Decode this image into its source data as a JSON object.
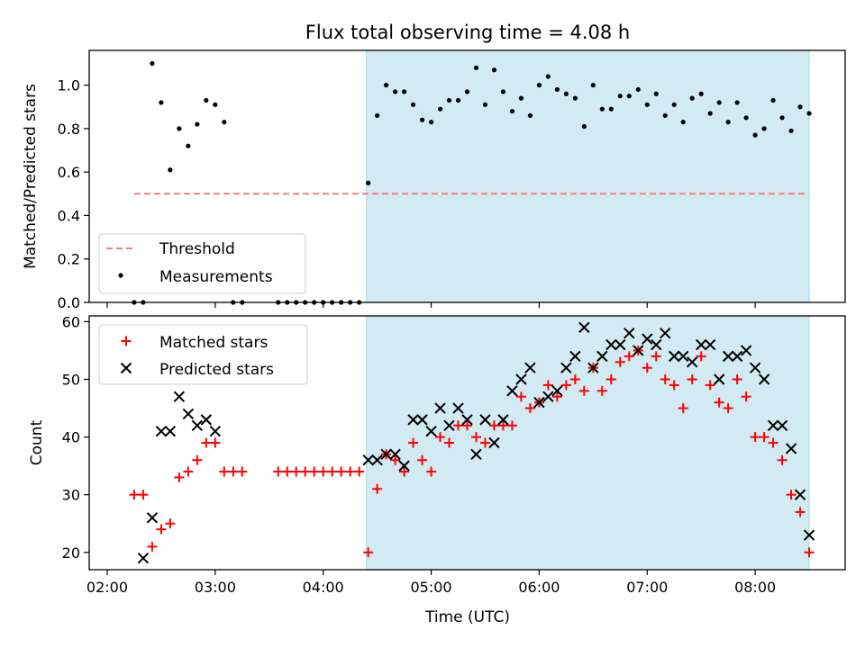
{
  "title": "Flux total observing time = 4.08 h",
  "colors": {
    "threshold": "#f08080",
    "measurement": "#000000",
    "matched": "#ff0000",
    "predicted": "#000000",
    "observing_span": "#add8e6"
  },
  "chart_data": [
    {
      "type": "scatter",
      "panel": "top",
      "ylabel": "Matched/Predicted stars",
      "xlim": [
        "01:50",
        "08:50"
      ],
      "ylim": [
        0,
        1.16
      ],
      "yticks": [
        "0.0",
        "0.2",
        "0.4",
        "0.6",
        "0.8",
        "1.0"
      ],
      "shaded_span": [
        "04:24",
        "08:30"
      ],
      "legend": {
        "position": "lower-left",
        "entries": [
          "Threshold",
          "Measurements"
        ]
      },
      "threshold": {
        "name": "Threshold",
        "value": 0.5,
        "x": [
          "02:15",
          "08:29"
        ]
      },
      "series": [
        {
          "name": "Measurements",
          "marker": "dot",
          "x": [
            "02:15",
            "02:20",
            "02:25",
            "02:30",
            "02:35",
            "02:40",
            "02:45",
            "02:50",
            "02:55",
            "03:00",
            "03:05",
            "03:10",
            "03:15",
            "03:35",
            "03:40",
            "03:45",
            "03:50",
            "03:55",
            "04:00",
            "04:05",
            "04:10",
            "04:15",
            "04:20",
            "04:25",
            "04:30",
            "04:35",
            "04:40",
            "04:45",
            "04:50",
            "04:55",
            "05:00",
            "05:05",
            "05:10",
            "05:15",
            "05:20",
            "05:25",
            "05:30",
            "05:35",
            "05:40",
            "05:45",
            "05:50",
            "05:55",
            "06:00",
            "06:05",
            "06:10",
            "06:15",
            "06:20",
            "06:25",
            "06:30",
            "06:35",
            "06:40",
            "06:45",
            "06:50",
            "06:55",
            "07:00",
            "07:05",
            "07:10",
            "07:15",
            "07:20",
            "07:25",
            "07:30",
            "07:35",
            "07:40",
            "07:45",
            "07:50",
            "07:55",
            "08:00",
            "08:05",
            "08:10",
            "08:15",
            "08:20",
            "08:25",
            "08:30"
          ],
          "y": [
            0,
            0,
            1.1,
            0.92,
            0.61,
            0.8,
            0.72,
            0.82,
            0.93,
            0.91,
            0.83,
            0,
            0,
            0,
            0,
            0,
            0,
            0,
            0,
            0,
            0,
            0,
            0,
            0.55,
            0.86,
            1.0,
            0.97,
            0.97,
            0.91,
            0.84,
            0.83,
            0.89,
            0.93,
            0.93,
            0.97,
            1.08,
            0.91,
            1.07,
            0.97,
            0.88,
            0.94,
            0.86,
            1.0,
            1.04,
            0.98,
            0.96,
            0.94,
            0.81,
            1.0,
            0.89,
            0.89,
            0.95,
            0.95,
            0.98,
            0.91,
            0.96,
            0.86,
            0.91,
            0.83,
            0.94,
            0.96,
            0.87,
            0.92,
            0.83,
            0.92,
            0.85,
            0.77,
            0.8,
            0.93,
            0.85,
            0.79,
            0.9,
            0.87
          ]
        }
      ]
    },
    {
      "type": "scatter",
      "panel": "bottom",
      "xlabel": "Time (UTC)",
      "ylabel": "Count",
      "xlim": [
        "01:50",
        "08:50"
      ],
      "ylim": [
        17,
        61
      ],
      "yticks": [
        "20",
        "30",
        "40",
        "50",
        "60"
      ],
      "xticks": [
        "02:00",
        "03:00",
        "04:00",
        "05:00",
        "06:00",
        "07:00",
        "08:00"
      ],
      "shaded_span": [
        "04:24",
        "08:30"
      ],
      "legend": {
        "position": "upper-left",
        "entries": [
          "Matched stars",
          "Predicted stars"
        ]
      },
      "series": [
        {
          "name": "Matched stars",
          "marker": "plus",
          "x": [
            "02:15",
            "02:20",
            "02:25",
            "02:30",
            "02:35",
            "02:40",
            "02:45",
            "02:50",
            "02:55",
            "03:00",
            "03:05",
            "03:10",
            "03:15",
            "03:35",
            "03:40",
            "03:45",
            "03:50",
            "03:55",
            "04:00",
            "04:05",
            "04:10",
            "04:15",
            "04:20",
            "04:25",
            "04:30",
            "04:35",
            "04:40",
            "04:45",
            "04:50",
            "04:55",
            "05:00",
            "05:05",
            "05:10",
            "05:15",
            "05:20",
            "05:25",
            "05:30",
            "05:35",
            "05:40",
            "05:45",
            "05:50",
            "05:55",
            "06:00",
            "06:05",
            "06:10",
            "06:15",
            "06:20",
            "06:25",
            "06:30",
            "06:35",
            "06:40",
            "06:45",
            "06:50",
            "06:55",
            "07:00",
            "07:05",
            "07:10",
            "07:15",
            "07:20",
            "07:25",
            "07:30",
            "07:35",
            "07:40",
            "07:45",
            "07:50",
            "07:55",
            "08:00",
            "08:05",
            "08:10",
            "08:15",
            "08:20",
            "08:25",
            "08:30"
          ],
          "y": [
            30,
            30,
            21,
            24,
            25,
            33,
            34,
            36,
            39,
            39,
            34,
            34,
            34,
            34,
            34,
            34,
            34,
            34,
            34,
            34,
            34,
            34,
            34,
            20,
            31,
            37,
            36,
            34,
            39,
            36,
            34,
            40,
            39,
            42,
            42,
            40,
            39,
            42,
            42,
            42,
            47,
            45,
            46,
            49,
            47,
            49,
            50,
            48,
            52,
            48,
            50,
            53,
            54,
            55,
            52,
            54,
            50,
            49,
            45,
            50,
            54,
            49,
            46,
            45,
            50,
            47,
            40,
            40,
            39,
            36,
            30,
            27,
            20
          ]
        },
        {
          "name": "Predicted stars",
          "marker": "x",
          "x": [
            "02:20",
            "02:25",
            "02:30",
            "02:35",
            "02:40",
            "02:45",
            "02:50",
            "02:55",
            "03:00",
            "04:25",
            "04:30",
            "04:35",
            "04:40",
            "04:45",
            "04:50",
            "04:55",
            "05:00",
            "05:05",
            "05:10",
            "05:15",
            "05:20",
            "05:25",
            "05:30",
            "05:35",
            "05:40",
            "05:45",
            "05:50",
            "05:55",
            "06:00",
            "06:05",
            "06:10",
            "06:15",
            "06:20",
            "06:25",
            "06:30",
            "06:35",
            "06:40",
            "06:45",
            "06:50",
            "06:55",
            "07:00",
            "07:05",
            "07:10",
            "07:15",
            "07:20",
            "07:25",
            "07:30",
            "07:35",
            "07:40",
            "07:45",
            "07:50",
            "07:55",
            "08:00",
            "08:05",
            "08:10",
            "08:15",
            "08:20",
            "08:25",
            "08:30"
          ],
          "y": [
            19,
            26,
            41,
            41,
            47,
            44,
            42,
            43,
            41,
            36,
            36,
            37,
            37,
            35,
            43,
            43,
            41,
            45,
            42,
            45,
            43,
            37,
            43,
            39,
            43,
            48,
            50,
            52,
            46,
            47,
            48,
            52,
            54,
            59,
            52,
            54,
            56,
            56,
            58,
            55,
            57,
            56,
            58,
            54,
            54,
            53,
            56,
            56,
            50,
            54,
            54,
            55,
            52,
            50,
            42,
            42,
            38,
            30,
            23
          ]
        }
      ]
    }
  ]
}
